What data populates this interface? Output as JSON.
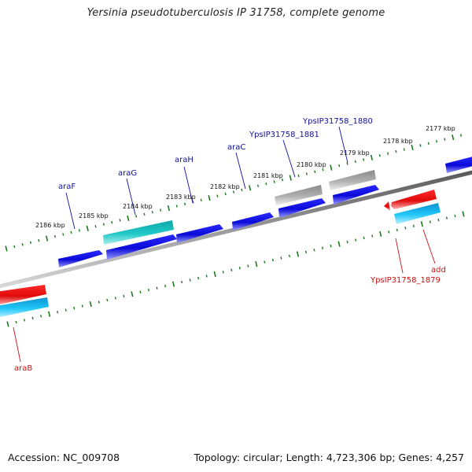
{
  "title": "Yersinia pseudotuberculosis IP 31758, complete genome",
  "footer": {
    "accession": "Accession: NC_009708",
    "summary": "Topology: circular; Length: 4,723,306 bp; Genes: 4,257"
  },
  "colors": {
    "forward_gene": "#1010e0",
    "reverse_gene": "#e81010",
    "forward_rna": "#20c0c0",
    "reverse_rna": "#10c8f0",
    "pseudo": "#a8a8a8",
    "tick": "#1a7a1a",
    "backbone": "#7a7a7a",
    "forward_label": "#1010a0",
    "reverse_label": "#cc1010"
  },
  "scale_ticks": [
    {
      "label": "2186 kbp",
      "kbp": 2186
    },
    {
      "label": "2185 kbp",
      "kbp": 2185
    },
    {
      "label": "2184 kbp",
      "kbp": 2184
    },
    {
      "label": "2183 kbp",
      "kbp": 2183
    },
    {
      "label": "2182 kbp",
      "kbp": 2182
    },
    {
      "label": "2181 kbp",
      "kbp": 2181
    },
    {
      "label": "2180 kbp",
      "kbp": 2180
    },
    {
      "label": "2179 kbp",
      "kbp": 2179
    },
    {
      "label": "2178 kbp",
      "kbp": 2178
    },
    {
      "label": "2177 kbp",
      "kbp": 2177
    }
  ],
  "genes": [
    {
      "name": "araF",
      "strand": "forward"
    },
    {
      "name": "araG",
      "strand": "forward"
    },
    {
      "name": "araH",
      "strand": "forward"
    },
    {
      "name": "araC",
      "strand": "forward"
    },
    {
      "name": "YpsIP31758_1881",
      "strand": "forward"
    },
    {
      "name": "YpsIP31758_1880",
      "strand": "forward"
    },
    {
      "name": "YpsIP31758_1879",
      "strand": "reverse"
    },
    {
      "name": "add",
      "strand": "reverse"
    },
    {
      "name": "araB",
      "strand": "reverse"
    }
  ]
}
